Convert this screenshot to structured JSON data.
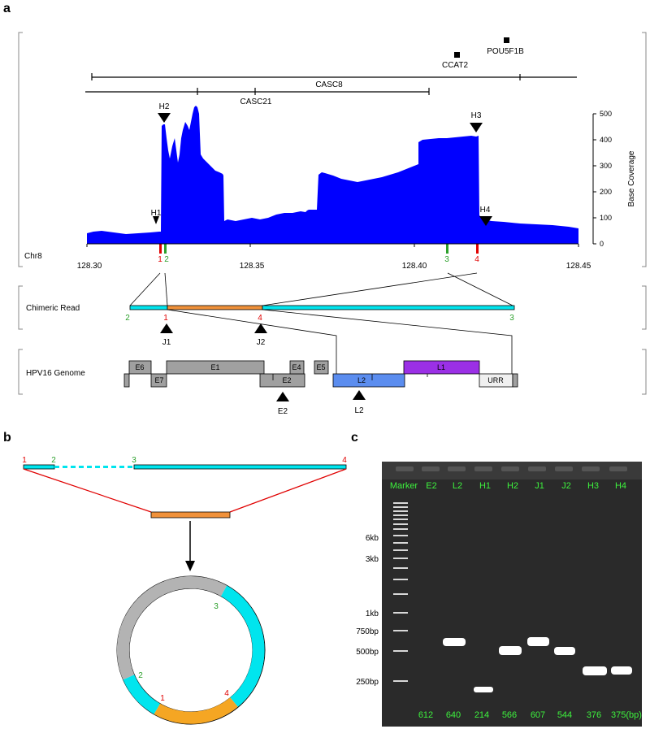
{
  "panels": {
    "a": "a",
    "b": "b",
    "c": "c"
  },
  "genome_track": {
    "features": {
      "ccat2": "CCAT2",
      "pou5f1b": "POU5F1B",
      "casc8": "CASC8",
      "casc21": "CASC21"
    },
    "markers": {
      "h1": "H1",
      "h2": "H2",
      "h3": "H3",
      "h4": "H4"
    },
    "chrom": "Chr8",
    "x_ticks": [
      "128.30",
      "128.35",
      "128.40",
      "128.45"
    ],
    "y_axis_label": "Base Coverage",
    "y_ticks": [
      "0",
      "100",
      "200",
      "300",
      "400",
      "500"
    ],
    "bp_labels": {
      "b1": "1",
      "b2": "2",
      "b3": "3",
      "b4": "4"
    },
    "colors": {
      "coverage": "#0000ff",
      "breakpoint_red": "#e00000",
      "breakpoint_green": "#2ca02c"
    }
  },
  "chimeric": {
    "label": "Chimeric Read",
    "numbers": {
      "n2": "2",
      "n1": "1",
      "n4": "4",
      "n3": "3"
    },
    "junctions": {
      "j1": "J1",
      "j2": "J2"
    },
    "colors": {
      "host": "#00e5ee",
      "viral": "#f0913a"
    }
  },
  "hpv": {
    "label": "HPV16 Genome",
    "genes": {
      "e6": "E6",
      "e7": "E7",
      "e1": "E1",
      "e2": "E2",
      "e4": "E4",
      "e5": "E5",
      "l2": "L2",
      "l1": "L1",
      "urr": "URR"
    },
    "markers": {
      "e2": "E2",
      "l2": "L2"
    },
    "colors": {
      "gene": "#a0a0a0",
      "l2": "#5b8def",
      "l1": "#9b30e6",
      "urr": "#f0f0f0"
    }
  },
  "circle": {
    "top_labels": {
      "n1": "1",
      "n2": "2",
      "n3": "3",
      "n4": "4"
    },
    "ring_labels": {
      "n1": "1",
      "n2": "2",
      "n3": "3",
      "n4": "4"
    },
    "colors": {
      "host": "#00e5ee",
      "viral": "#f5a623",
      "backbone": "#b3b3b3"
    }
  },
  "gel": {
    "lanes": [
      "Marker",
      "E2",
      "L2",
      "H1",
      "H2",
      "J1",
      "J2",
      "H3",
      "H4"
    ],
    "ladder": [
      "6kb",
      "3kb",
      "1kb",
      "750bp",
      "500bp",
      "250bp"
    ],
    "sizes": [
      "612",
      "640",
      "214",
      "566",
      "607",
      "544",
      "376",
      "375(bp)"
    ]
  }
}
